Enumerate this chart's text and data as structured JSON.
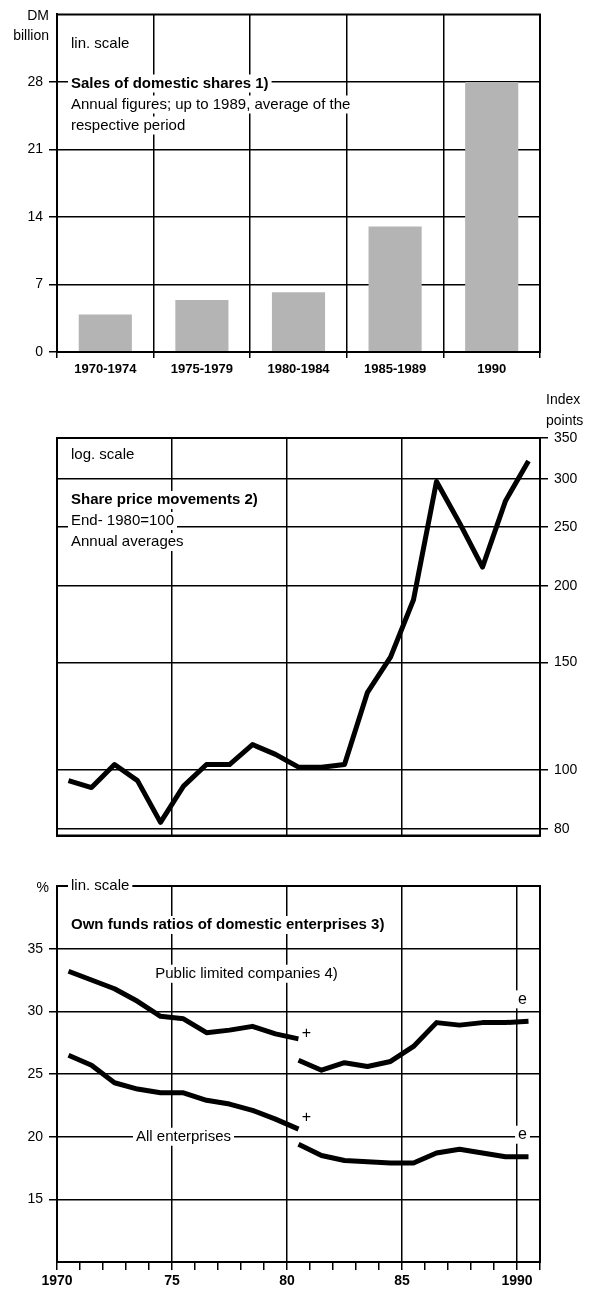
{
  "chart_data": [
    {
      "type": "bar",
      "title": "Sales of domestic shares 1)",
      "subtitle": "Annual figures; up to 1989, average of the respective period",
      "ylabel": "DM billion",
      "annotations": [
        "lin. scale"
      ],
      "categories": [
        "1970-1974",
        "1975-1979",
        "1980-1984",
        "1985-1989",
        "1990"
      ],
      "values": [
        3.9,
        5.4,
        6.2,
        13,
        28
      ],
      "color": "#b4b4b4",
      "ylim": [
        0,
        35
      ],
      "yticks": [
        0,
        7,
        14,
        21,
        28
      ],
      "grid": true
    },
    {
      "type": "line",
      "title": "Share price movements 2)",
      "subtitle": "End- 1980=100\nAnnual averages",
      "ylabel": "Index points",
      "annotations": [
        "log. scale"
      ],
      "x": [
        1970.5,
        1971.5,
        1972.5,
        1973.5,
        1974.5,
        1975.5,
        1976.5,
        1977.5,
        1978.5,
        1979.5,
        1980.5,
        1981.5,
        1982.5,
        1983.5,
        1984.5,
        1985.5,
        1986.5,
        1987.5,
        1988.5,
        1989.5,
        1990.5
      ],
      "values": [
        96,
        93.5,
        102,
        96,
        82,
        94,
        102,
        102,
        110,
        106,
        101,
        101,
        102,
        134,
        153,
        190,
        297,
        254,
        215,
        276,
        321
      ],
      "color": "#000000",
      "log": true,
      "xlim": [
        1970,
        1991
      ],
      "xticks": [
        1970,
        1975,
        1980,
        1985,
        1991
      ],
      "ylim": [
        78,
        350
      ],
      "yticks": [
        80,
        100,
        150,
        200,
        250,
        300,
        350
      ],
      "tick_labels": "y",
      "grid": true
    },
    {
      "type": "line",
      "title": "Own funds ratios of domestic enterprises 3)",
      "ylabel": "%",
      "annotations": [
        "lin. scale",
        "+",
        "+",
        "e",
        "e"
      ],
      "series": [
        {
          "name": "Public limited companies 4)",
          "color": "#000000",
          "x": [
            1970.5,
            1971.5,
            1972.5,
            1973.5,
            1974.5,
            1975.5,
            1976.5,
            1977.5,
            1978.5,
            1979.5,
            1980.5,
            1980.5,
            1981.5,
            1982.5,
            1983.5,
            1984.5,
            1985.5,
            1986.5,
            1987.5,
            1988.5,
            1989.5,
            1990.5
          ],
          "values": [
            33.2,
            32.5,
            31.8,
            30.8,
            29.6,
            29.4,
            28.3,
            28.5,
            28.8,
            28.2,
            27.8,
            26.1,
            25.3,
            25.9,
            25.6,
            26.0,
            27.2,
            29.1,
            28.9,
            29.1,
            29.1,
            29.2
          ]
        },
        {
          "name": "All enterprises",
          "color": "#000000",
          "x": [
            1970.5,
            1971.5,
            1972.5,
            1973.5,
            1974.5,
            1975.5,
            1976.5,
            1977.5,
            1978.5,
            1979.5,
            1980.5,
            1980.5,
            1981.5,
            1982.5,
            1983.5,
            1984.5,
            1985.5,
            1986.5,
            1987.5,
            1988.5,
            1989.5,
            1990.5
          ],
          "values": [
            26.5,
            25.7,
            24.3,
            23.8,
            23.5,
            23.5,
            22.9,
            22.6,
            22.1,
            21.4,
            20.6,
            19.4,
            18.5,
            18.1,
            18.0,
            17.9,
            17.9,
            18.7,
            19.0,
            18.7,
            18.4,
            18.4
          ]
        }
      ],
      "xlim": [
        1970,
        1991
      ],
      "xticks": [
        1970,
        {
          "value": 1971,
          "label": null
        },
        {
          "value": 1972,
          "label": null
        },
        {
          "value": 1973,
          "label": null
        },
        {
          "value": 1974,
          "label": null
        },
        {
          "value": 1975,
          "label": "75"
        },
        {
          "value": 1976,
          "label": null
        },
        {
          "value": 1977,
          "label": null
        },
        {
          "value": 1978,
          "label": null
        },
        {
          "value": 1979,
          "label": null
        },
        {
          "value": 1980,
          "label": "80"
        },
        {
          "value": 1981,
          "label": null
        },
        {
          "value": 1982,
          "label": null
        },
        {
          "value": 1983,
          "label": null
        },
        {
          "value": 1984,
          "label": null
        },
        {
          "value": 1985,
          "label": "85"
        },
        {
          "value": 1986,
          "label": null
        },
        {
          "value": 1987,
          "label": null
        },
        {
          "value": 1988,
          "label": null
        },
        {
          "value": 1989,
          "label": null
        },
        1990,
        {
          "value": 1991,
          "label": null
        }
      ],
      "ylim": [
        10,
        40
      ],
      "yticks": [
        15,
        20,
        25,
        30,
        35
      ],
      "grid": true
    }
  ]
}
